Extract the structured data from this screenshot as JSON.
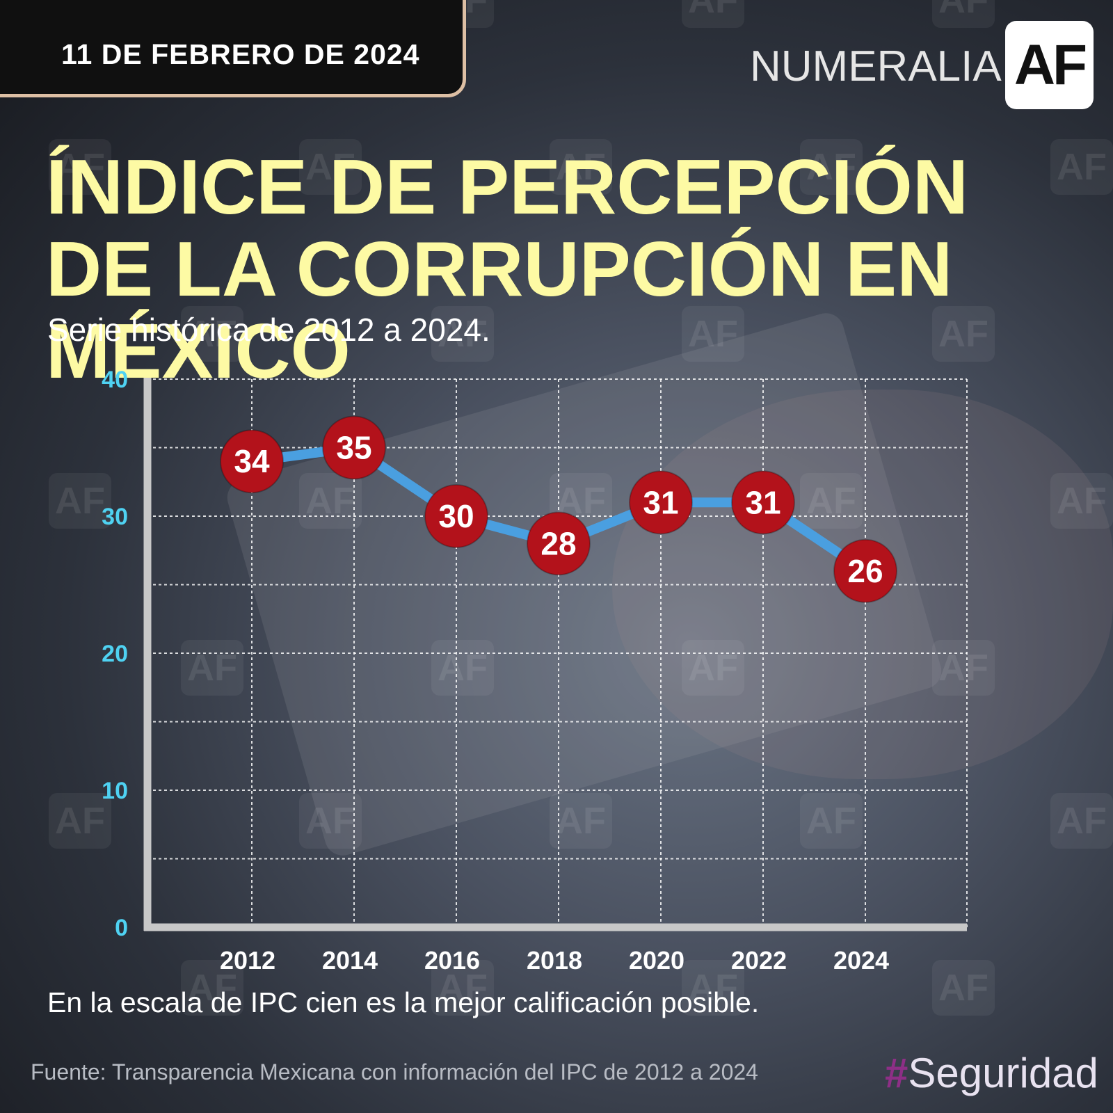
{
  "header": {
    "date": "11 DE FEBRERO DE 2024",
    "brand": "NUMERALIA",
    "logo": "AF"
  },
  "title": "ÍNDICE DE PERCEPCIÓN DE LA CORRUPCIÓN EN MÉXICO",
  "subtitle": "Serie histórica de 2012 a 2024.",
  "note": "En la escala de IPC cien es la mejor calificación posible.",
  "source": "Fuente: Transparencia Mexicana con información del IPC de 2012 a 2024",
  "hashtag": {
    "symbol": "#",
    "text": "Seguridad",
    "symbol_color": "#8d2f86"
  },
  "watermark": "AF",
  "colors": {
    "title": "#fdfaa4",
    "line": "#4a9fe0",
    "marker": "#b3121b",
    "y_tick": "#4fd2f2"
  },
  "chart_data": {
    "type": "line",
    "x": [
      "2012",
      "2014",
      "2016",
      "2018",
      "2020",
      "2022",
      "2024"
    ],
    "series": [
      {
        "values": [
          34,
          35,
          30,
          28,
          31,
          31,
          26
        ]
      }
    ],
    "ylim": [
      0,
      40
    ],
    "y_ticks": [
      0,
      10,
      20,
      30,
      40
    ],
    "grid": true,
    "legend": "none"
  }
}
